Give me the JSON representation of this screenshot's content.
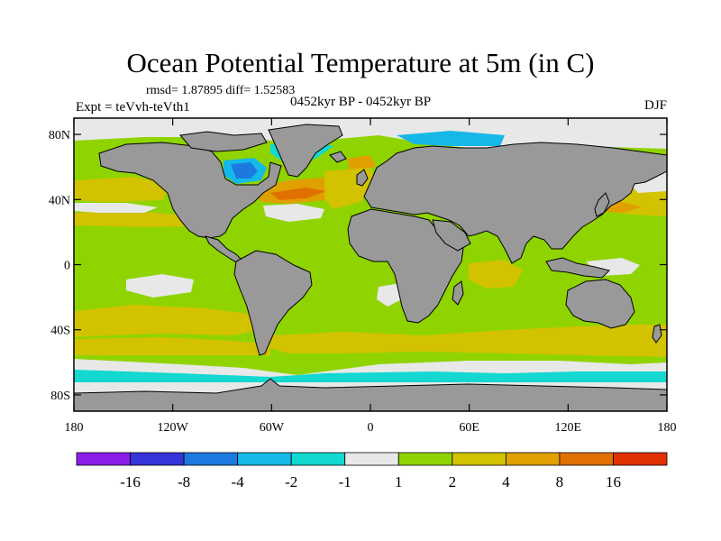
{
  "title": "Ocean Potential Temperature at 5m (in C)",
  "stats": "rmsd= 1.87895  diff= 1.52583",
  "experiment": "Expt = teVvh-teVth1",
  "period": "0452kyr BP - 0452kyr BP",
  "season": "DJF",
  "map": {
    "lat_ticks": [
      {
        "label": "80N",
        "lat": 80
      },
      {
        "label": "40N",
        "lat": 40
      },
      {
        "label": "0",
        "lat": 0
      },
      {
        "label": "40S",
        "lat": -40
      },
      {
        "label": "80S",
        "lat": -80
      }
    ],
    "lon_ticks": [
      {
        "label": "180",
        "lon": -180
      },
      {
        "label": "120W",
        "lon": -120
      },
      {
        "label": "60W",
        "lon": -60
      },
      {
        "label": "0",
        "lon": 0
      },
      {
        "label": "60E",
        "lon": 60
      },
      {
        "label": "120E",
        "lon": 120
      },
      {
        "label": "180",
        "lon": 180
      }
    ],
    "colors": {
      "land": "#999999",
      "background_field": "#8fd400",
      "coast": "#000000"
    }
  },
  "colorbar": {
    "labels": [
      "-16",
      "-8",
      "-4",
      "-2",
      "-1",
      "1",
      "2",
      "4",
      "8",
      "16"
    ],
    "colors": [
      "#8b1ee8",
      "#3434d8",
      "#1b79e0",
      "#16b8e8",
      "#12d8d0",
      "#e8e8e8",
      "#8fd400",
      "#d2c200",
      "#e0a000",
      "#e07000",
      "#e03000"
    ]
  }
}
